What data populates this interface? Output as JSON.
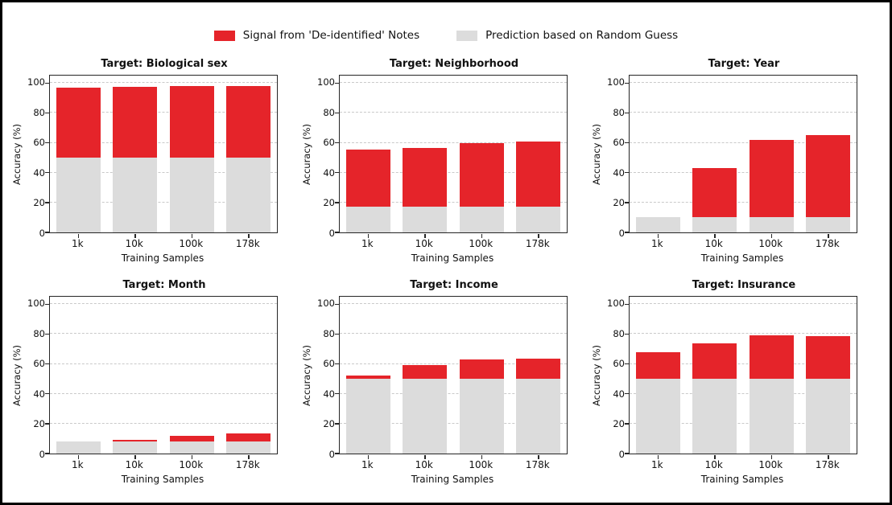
{
  "figure": {
    "background": "#ffffff",
    "border_color": "#000000",
    "text_color": "#111111",
    "grid_color": "#c9c9c9",
    "spine_color": "#262626",
    "legend": {
      "items": [
        {
          "key": "signal",
          "label": "Signal from 'De-identified' Notes",
          "color": "#e5242a"
        },
        {
          "key": "random",
          "label": "Prediction based on Random Guess",
          "color": "#dcdcdc"
        }
      ]
    }
  },
  "chart_data": [
    {
      "type": "bar",
      "title": "Target: Biological sex",
      "categories": [
        "1k",
        "10k",
        "100k",
        "178k"
      ],
      "stacked": true,
      "series": [
        {
          "name": "Prediction based on Random Guess",
          "color": "#dcdcdc",
          "values": [
            50,
            50,
            50,
            50
          ]
        },
        {
          "name": "Signal from 'De-identified' Notes",
          "color": "#e5242a",
          "values": [
            47,
            47.5,
            48,
            48
          ]
        }
      ],
      "total_accuracy": [
        97,
        97.5,
        98,
        98
      ],
      "xlabel": "Training Samples",
      "ylabel": "Accuracy (%)",
      "ylim": [
        0,
        105
      ],
      "yticks": [
        0,
        20,
        40,
        60,
        80,
        100
      ],
      "grid": "dashed-horizontal"
    },
    {
      "type": "bar",
      "title": "Target: Neighborhood",
      "categories": [
        "1k",
        "10k",
        "100k",
        "178k"
      ],
      "stacked": true,
      "series": [
        {
          "name": "Prediction based on Random Guess",
          "color": "#dcdcdc",
          "values": [
            17,
            17,
            17,
            17
          ]
        },
        {
          "name": "Signal from 'De-identified' Notes",
          "color": "#e5242a",
          "values": [
            38.5,
            39.5,
            43,
            44
          ]
        }
      ],
      "total_accuracy": [
        55.5,
        56.5,
        60,
        61
      ],
      "xlabel": "Training Samples",
      "ylabel": "Accuracy (%)",
      "ylim": [
        0,
        105
      ],
      "yticks": [
        0,
        20,
        40,
        60,
        80,
        100
      ],
      "grid": "dashed-horizontal"
    },
    {
      "type": "bar",
      "title": "Target: Year",
      "categories": [
        "1k",
        "10k",
        "100k",
        "178k"
      ],
      "stacked": true,
      "series": [
        {
          "name": "Prediction based on Random Guess",
          "color": "#dcdcdc",
          "values": [
            10,
            10,
            10,
            10
          ]
        },
        {
          "name": "Signal from 'De-identified' Notes",
          "color": "#e5242a",
          "values": [
            0,
            33,
            52,
            55
          ]
        }
      ],
      "total_accuracy": [
        10,
        43,
        62,
        65
      ],
      "xlabel": "Training Samples",
      "ylabel": "Accuracy (%)",
      "ylim": [
        0,
        105
      ],
      "yticks": [
        0,
        20,
        40,
        60,
        80,
        100
      ],
      "grid": "dashed-horizontal"
    },
    {
      "type": "bar",
      "title": "Target: Month",
      "categories": [
        "1k",
        "10k",
        "100k",
        "178k"
      ],
      "stacked": true,
      "series": [
        {
          "name": "Prediction based on Random Guess",
          "color": "#dcdcdc",
          "values": [
            8.3,
            8.3,
            8.3,
            8.3
          ]
        },
        {
          "name": "Signal from 'De-identified' Notes",
          "color": "#e5242a",
          "values": [
            0,
            0.7,
            3.7,
            5.2
          ]
        }
      ],
      "total_accuracy": [
        8.3,
        9,
        12,
        13.5
      ],
      "xlabel": "Training Samples",
      "ylabel": "Accuracy (%)",
      "ylim": [
        0,
        105
      ],
      "yticks": [
        0,
        20,
        40,
        60,
        80,
        100
      ],
      "grid": "dashed-horizontal"
    },
    {
      "type": "bar",
      "title": "Target: Income",
      "categories": [
        "1k",
        "10k",
        "100k",
        "178k"
      ],
      "stacked": true,
      "series": [
        {
          "name": "Prediction based on Random Guess",
          "color": "#dcdcdc",
          "values": [
            50,
            50,
            50,
            50
          ]
        },
        {
          "name": "Signal from 'De-identified' Notes",
          "color": "#e5242a",
          "values": [
            2.5,
            9,
            13,
            13.5
          ]
        }
      ],
      "total_accuracy": [
        52.5,
        59,
        63,
        63.5
      ],
      "xlabel": "Training Samples",
      "ylabel": "Accuracy (%)",
      "ylim": [
        0,
        105
      ],
      "yticks": [
        0,
        20,
        40,
        60,
        80,
        100
      ],
      "grid": "dashed-horizontal"
    },
    {
      "type": "bar",
      "title": "Target: Insurance",
      "categories": [
        "1k",
        "10k",
        "100k",
        "178k"
      ],
      "stacked": true,
      "series": [
        {
          "name": "Prediction based on Random Guess",
          "color": "#dcdcdc",
          "values": [
            50,
            50,
            50,
            50
          ]
        },
        {
          "name": "Signal from 'De-identified' Notes",
          "color": "#e5242a",
          "values": [
            18,
            24,
            29,
            28.5
          ]
        }
      ],
      "total_accuracy": [
        68,
        74,
        79,
        78.5
      ],
      "xlabel": "Training Samples",
      "ylabel": "Accuracy (%)",
      "ylim": [
        0,
        105
      ],
      "yticks": [
        0,
        20,
        40,
        60,
        80,
        100
      ],
      "grid": "dashed-horizontal"
    }
  ]
}
